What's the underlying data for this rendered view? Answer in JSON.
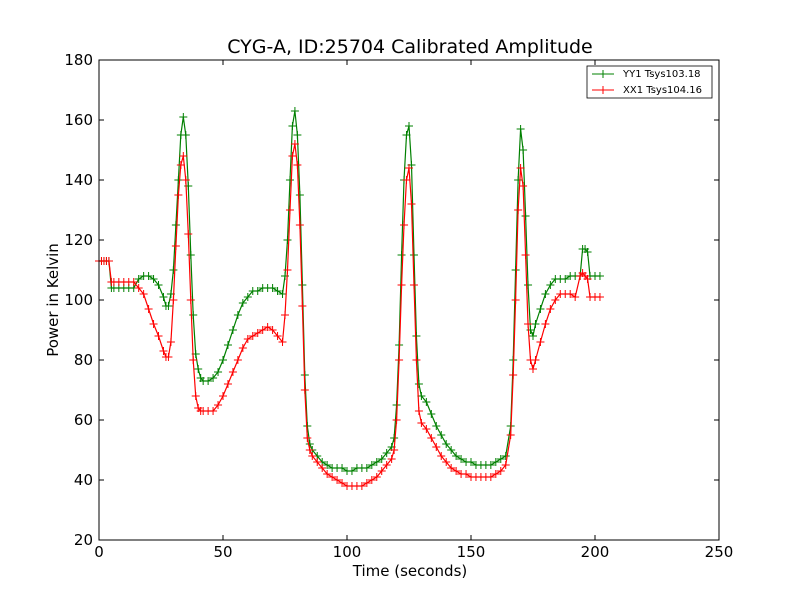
{
  "chart_data": {
    "type": "line",
    "title": "CYG-A, ID:25704 Calibrated Amplitude",
    "xlabel": "Time (seconds)",
    "ylabel": "Power in Kelvin",
    "xlim": [
      0,
      250
    ],
    "ylim": [
      20,
      180
    ],
    "xticks": [
      "0",
      "50",
      "100",
      "150",
      "200",
      "250"
    ],
    "yticks": [
      "20",
      "40",
      "60",
      "80",
      "100",
      "120",
      "140",
      "160",
      "180"
    ],
    "grid": false,
    "legend_position": "top-right",
    "marker": "+",
    "series": [
      {
        "name": "YY1 Tsys103.18",
        "color": "#008000",
        "points": [
          [
            0,
            113
          ],
          [
            1,
            113
          ],
          [
            2,
            113
          ],
          [
            3,
            113
          ],
          [
            4,
            113
          ],
          [
            5,
            104
          ],
          [
            6,
            104
          ],
          [
            8,
            104
          ],
          [
            10,
            104
          ],
          [
            12,
            104
          ],
          [
            14,
            104
          ],
          [
            16,
            107
          ],
          [
            18,
            108
          ],
          [
            20,
            108
          ],
          [
            22,
            107
          ],
          [
            24,
            105
          ],
          [
            26,
            101
          ],
          [
            27,
            98
          ],
          [
            28,
            98
          ],
          [
            29,
            102
          ],
          [
            30,
            110
          ],
          [
            31,
            125
          ],
          [
            32,
            140
          ],
          [
            33,
            155
          ],
          [
            34,
            161
          ],
          [
            35,
            155
          ],
          [
            36,
            138
          ],
          [
            37,
            115
          ],
          [
            38,
            95
          ],
          [
            39,
            82
          ],
          [
            40,
            77
          ],
          [
            41,
            74
          ],
          [
            42,
            73
          ],
          [
            44,
            73
          ],
          [
            46,
            74
          ],
          [
            48,
            76
          ],
          [
            50,
            80
          ],
          [
            52,
            85
          ],
          [
            54,
            90
          ],
          [
            56,
            95
          ],
          [
            58,
            99
          ],
          [
            60,
            101
          ],
          [
            62,
            103
          ],
          [
            64,
            103
          ],
          [
            66,
            104
          ],
          [
            68,
            104
          ],
          [
            70,
            104
          ],
          [
            72,
            103
          ],
          [
            74,
            102
          ],
          [
            75,
            108
          ],
          [
            76,
            120
          ],
          [
            77,
            140
          ],
          [
            78,
            158
          ],
          [
            79,
            163
          ],
          [
            80,
            155
          ],
          [
            81,
            135
          ],
          [
            82,
            105
          ],
          [
            83,
            75
          ],
          [
            84,
            58
          ],
          [
            85,
            52
          ],
          [
            86,
            50
          ],
          [
            88,
            48
          ],
          [
            90,
            46
          ],
          [
            92,
            45
          ],
          [
            94,
            44
          ],
          [
            96,
            44
          ],
          [
            98,
            44
          ],
          [
            100,
            43
          ],
          [
            102,
            43
          ],
          [
            104,
            44
          ],
          [
            106,
            44
          ],
          [
            108,
            44
          ],
          [
            110,
            45
          ],
          [
            112,
            46
          ],
          [
            114,
            47
          ],
          [
            116,
            49
          ],
          [
            118,
            51
          ],
          [
            119,
            54
          ],
          [
            120,
            65
          ],
          [
            121,
            85
          ],
          [
            122,
            115
          ],
          [
            123,
            140
          ],
          [
            124,
            155
          ],
          [
            125,
            158
          ],
          [
            126,
            145
          ],
          [
            127,
            115
          ],
          [
            128,
            88
          ],
          [
            129,
            72
          ],
          [
            130,
            68
          ],
          [
            132,
            66
          ],
          [
            134,
            62
          ],
          [
            136,
            58
          ],
          [
            138,
            55
          ],
          [
            140,
            52
          ],
          [
            142,
            50
          ],
          [
            144,
            48
          ],
          [
            146,
            47
          ],
          [
            148,
            46
          ],
          [
            150,
            46
          ],
          [
            152,
            45
          ],
          [
            154,
            45
          ],
          [
            156,
            45
          ],
          [
            158,
            45
          ],
          [
            160,
            46
          ],
          [
            162,
            47
          ],
          [
            164,
            48
          ],
          [
            166,
            58
          ],
          [
            167,
            80
          ],
          [
            168,
            110
          ],
          [
            169,
            140
          ],
          [
            170,
            157
          ],
          [
            171,
            150
          ],
          [
            172,
            128
          ],
          [
            173,
            105
          ],
          [
            174,
            90
          ],
          [
            175,
            88
          ],
          [
            176,
            92
          ],
          [
            178,
            97
          ],
          [
            180,
            102
          ],
          [
            182,
            105
          ],
          [
            184,
            107
          ],
          [
            186,
            107
          ],
          [
            188,
            107
          ],
          [
            190,
            108
          ],
          [
            192,
            108
          ],
          [
            194,
            108
          ],
          [
            195,
            117
          ],
          [
            196,
            117
          ],
          [
            197,
            116
          ],
          [
            198,
            108
          ],
          [
            200,
            108
          ],
          [
            202,
            108
          ]
        ]
      },
      {
        "name": "XX1 Tsys104.16",
        "color": "#ff0000",
        "points": [
          [
            0,
            113
          ],
          [
            1,
            113
          ],
          [
            2,
            113
          ],
          [
            3,
            113
          ],
          [
            4,
            113
          ],
          [
            5,
            106
          ],
          [
            6,
            106
          ],
          [
            8,
            106
          ],
          [
            10,
            106
          ],
          [
            12,
            106
          ],
          [
            14,
            106
          ],
          [
            16,
            104
          ],
          [
            18,
            102
          ],
          [
            20,
            97
          ],
          [
            22,
            92
          ],
          [
            24,
            88
          ],
          [
            26,
            83
          ],
          [
            27,
            81
          ],
          [
            28,
            81
          ],
          [
            29,
            86
          ],
          [
            30,
            100
          ],
          [
            31,
            118
          ],
          [
            32,
            135
          ],
          [
            33,
            145
          ],
          [
            34,
            148
          ],
          [
            35,
            140
          ],
          [
            36,
            122
          ],
          [
            37,
            100
          ],
          [
            38,
            80
          ],
          [
            39,
            68
          ],
          [
            40,
            64
          ],
          [
            41,
            63
          ],
          [
            42,
            63
          ],
          [
            44,
            63
          ],
          [
            46,
            63
          ],
          [
            48,
            65
          ],
          [
            50,
            68
          ],
          [
            52,
            72
          ],
          [
            54,
            76
          ],
          [
            56,
            80
          ],
          [
            58,
            84
          ],
          [
            60,
            87
          ],
          [
            62,
            88
          ],
          [
            64,
            89
          ],
          [
            66,
            90
          ],
          [
            68,
            91
          ],
          [
            70,
            90
          ],
          [
            72,
            88
          ],
          [
            74,
            86
          ],
          [
            75,
            95
          ],
          [
            76,
            110
          ],
          [
            77,
            130
          ],
          [
            78,
            148
          ],
          [
            79,
            152
          ],
          [
            80,
            145
          ],
          [
            81,
            125
          ],
          [
            82,
            98
          ],
          [
            83,
            70
          ],
          [
            84,
            54
          ],
          [
            85,
            50
          ],
          [
            86,
            48
          ],
          [
            88,
            46
          ],
          [
            90,
            44
          ],
          [
            92,
            42
          ],
          [
            94,
            41
          ],
          [
            96,
            40
          ],
          [
            98,
            39
          ],
          [
            100,
            38
          ],
          [
            102,
            38
          ],
          [
            104,
            38
          ],
          [
            106,
            38
          ],
          [
            108,
            39
          ],
          [
            110,
            40
          ],
          [
            112,
            41
          ],
          [
            114,
            43
          ],
          [
            116,
            45
          ],
          [
            118,
            47
          ],
          [
            119,
            50
          ],
          [
            120,
            60
          ],
          [
            121,
            80
          ],
          [
            122,
            105
          ],
          [
            123,
            125
          ],
          [
            124,
            140
          ],
          [
            125,
            144
          ],
          [
            126,
            132
          ],
          [
            127,
            105
          ],
          [
            128,
            80
          ],
          [
            129,
            63
          ],
          [
            130,
            59
          ],
          [
            132,
            57
          ],
          [
            134,
            54
          ],
          [
            136,
            51
          ],
          [
            138,
            48
          ],
          [
            140,
            46
          ],
          [
            142,
            44
          ],
          [
            144,
            43
          ],
          [
            146,
            42
          ],
          [
            148,
            42
          ],
          [
            150,
            41
          ],
          [
            152,
            41
          ],
          [
            154,
            41
          ],
          [
            156,
            41
          ],
          [
            158,
            41
          ],
          [
            160,
            42
          ],
          [
            162,
            43
          ],
          [
            164,
            45
          ],
          [
            166,
            55
          ],
          [
            167,
            75
          ],
          [
            168,
            100
          ],
          [
            169,
            130
          ],
          [
            170,
            144
          ],
          [
            171,
            138
          ],
          [
            172,
            115
          ],
          [
            173,
            92
          ],
          [
            174,
            80
          ],
          [
            175,
            77
          ],
          [
            176,
            80
          ],
          [
            178,
            86
          ],
          [
            180,
            92
          ],
          [
            182,
            97
          ],
          [
            184,
            100
          ],
          [
            186,
            102
          ],
          [
            188,
            102
          ],
          [
            190,
            102
          ],
          [
            192,
            101
          ],
          [
            194,
            108
          ],
          [
            195,
            109
          ],
          [
            196,
            108
          ],
          [
            197,
            107
          ],
          [
            198,
            101
          ],
          [
            200,
            101
          ],
          [
            202,
            101
          ]
        ]
      }
    ]
  }
}
